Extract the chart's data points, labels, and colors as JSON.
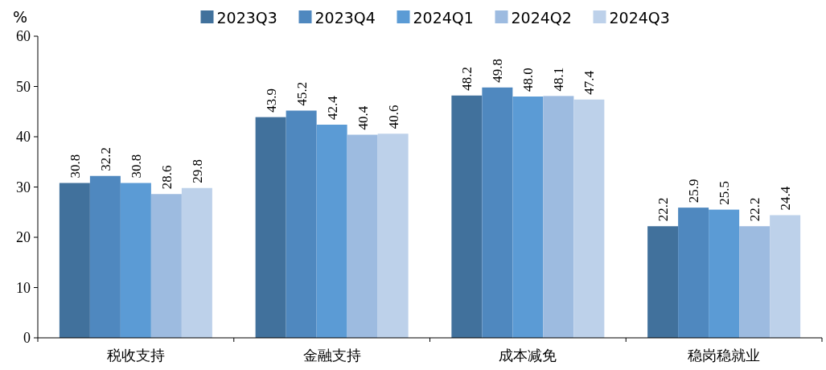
{
  "chart_data": {
    "type": "bar",
    "ylabel": "%",
    "categories": [
      "税收支持",
      "金融支持",
      "成本减免",
      "稳岗稳就业"
    ],
    "series": [
      {
        "name": "2023Q3",
        "color": "#41719c",
        "values": [
          30.8,
          43.9,
          48.2,
          22.2
        ]
      },
      {
        "name": "2023Q4",
        "color": "#4f88bf",
        "values": [
          32.2,
          45.2,
          49.8,
          25.9
        ]
      },
      {
        "name": "2024Q1",
        "color": "#5b9bd5",
        "values": [
          30.8,
          42.4,
          48.0,
          25.5
        ],
        "value_labels": [
          "30.8",
          "42.4",
          "48.0",
          "25.5"
        ]
      },
      {
        "name": "2024Q2",
        "color": "#9dbbe0",
        "values": [
          28.6,
          40.4,
          48.1,
          22.2
        ]
      },
      {
        "name": "2024Q3",
        "color": "#bdd1ea",
        "values": [
          29.8,
          40.6,
          47.4,
          24.4
        ]
      }
    ],
    "ylim": [
      0,
      60
    ],
    "yticks": [
      0,
      10,
      20,
      30,
      40,
      50,
      60
    ],
    "data_labels": true,
    "legend": "top"
  }
}
